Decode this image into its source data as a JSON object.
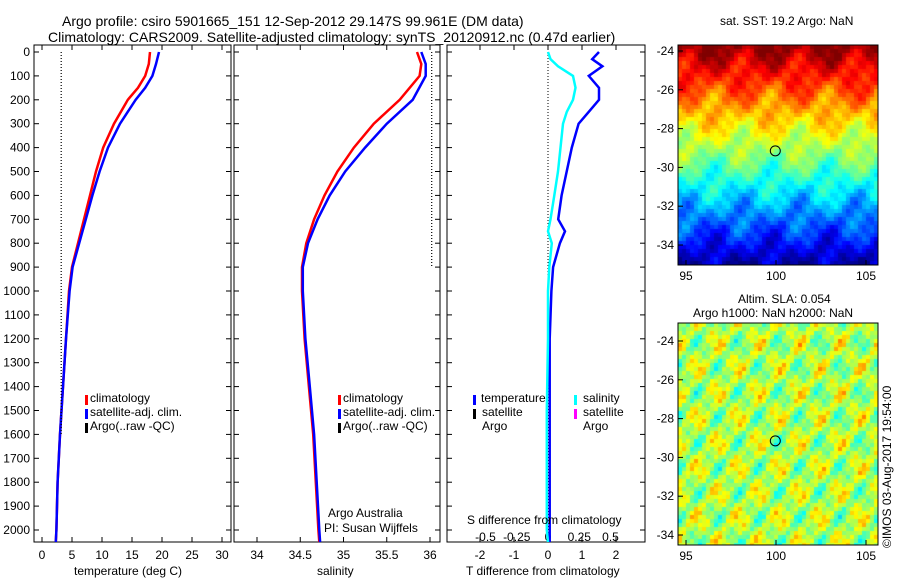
{
  "title": {
    "line1": "Argo profile: csiro 5901665_151 12-Sep-2012 29.147S 99.961E (DM data)",
    "line2": "Climatology: CARS2009. Satellite-adjusted climatology: synTS_20120912.nc (0.47d earlier)"
  },
  "colors": {
    "climatology": "#ff0000",
    "satellite": "#0000ff",
    "argo": "#000000",
    "sal_satellite": "#00ffff",
    "sal_argo": "#ff00ff"
  },
  "chart_data": [
    {
      "type": "line",
      "name": "temperature",
      "xlabel": "temperature (deg C)",
      "xlim": [
        -1,
        31
      ],
      "ylim": [
        2050,
        0
      ],
      "xticks": [
        0,
        5,
        10,
        15,
        20,
        25,
        30
      ],
      "yticks": [
        0,
        100,
        200,
        300,
        400,
        500,
        600,
        700,
        800,
        900,
        1000,
        1100,
        1200,
        1300,
        1400,
        1500,
        1600,
        1700,
        1800,
        1900,
        2000
      ],
      "depth": [
        0,
        50,
        100,
        150,
        200,
        300,
        400,
        500,
        600,
        700,
        800,
        900,
        1000,
        1200,
        1400,
        1600,
        1800,
        2000,
        2050
      ],
      "series": [
        {
          "name": "climatology",
          "values": [
            18,
            17.8,
            17.2,
            16,
            14.3,
            12,
            10.2,
            9,
            8,
            7,
            6,
            5,
            4.5,
            4,
            3.5,
            3,
            2.6,
            2.4,
            2.3
          ]
        },
        {
          "name": "satellite-adj. clim.",
          "values": [
            19.5,
            19,
            18.4,
            17.2,
            15.6,
            13,
            11,
            9.6,
            8.4,
            7.3,
            6.2,
            5.1,
            4.6,
            4,
            3.5,
            3,
            2.6,
            2.4,
            2.3
          ]
        },
        {
          "name": "Argo(..raw -QC)",
          "values": [
            3.2,
            3.2,
            3.2,
            3.2,
            3.2,
            3.2,
            3.2,
            3.2,
            3.2,
            3.2,
            3.2,
            3.2,
            3.2,
            3.2,
            3.2,
            3.2,
            null,
            null,
            null
          ]
        }
      ],
      "legend": [
        "climatology",
        "satellite-adj. clim.",
        "Argo(..raw -QC)"
      ]
    },
    {
      "type": "line",
      "name": "salinity",
      "xlabel": "salinity",
      "xlim": [
        33.7,
        36.1
      ],
      "ylim": [
        2050,
        0
      ],
      "xticks": [
        34,
        34.5,
        35,
        35.5,
        36
      ],
      "depth": [
        0,
        50,
        100,
        200,
        300,
        400,
        500,
        600,
        700,
        800,
        900,
        1000,
        1200,
        1400,
        1600,
        1800,
        2000,
        2050
      ],
      "series": [
        {
          "name": "climatology",
          "values": [
            35.85,
            35.9,
            35.88,
            35.65,
            35.35,
            35.12,
            34.93,
            34.78,
            34.66,
            34.57,
            34.52,
            34.52,
            34.55,
            34.6,
            34.65,
            34.68,
            34.71,
            34.72
          ]
        },
        {
          "name": "satellite-adj. clim.",
          "values": [
            35.9,
            35.95,
            35.95,
            35.8,
            35.5,
            35.25,
            35.02,
            34.84,
            34.7,
            34.59,
            34.53,
            34.53,
            34.56,
            34.61,
            34.66,
            34.69,
            34.72,
            34.73
          ]
        },
        {
          "name": "Argo(..raw -QC)",
          "values": [
            36.02,
            36.02,
            36.02,
            36.02,
            36.02,
            36.02,
            36.02,
            36.02,
            36.02,
            36.02,
            36.02,
            null,
            null,
            null,
            null,
            null,
            null,
            null
          ]
        }
      ],
      "legend": [
        "climatology",
        "satellite-adj. clim.",
        "Argo(..raw -QC)"
      ],
      "annotation": [
        "Argo Australia",
        "PI: Susan Wijffels"
      ]
    },
    {
      "type": "line",
      "name": "difference",
      "xlabel": "T difference from climatology",
      "x2label": "S difference from climatology",
      "xlim": [
        -3,
        3
      ],
      "xticks": [
        -2,
        -1,
        0,
        1,
        2
      ],
      "x2lim": [
        -0.75,
        0.75
      ],
      "x2ticks": [
        "-0.5",
        "-0.25",
        "0",
        "0.25",
        "0.5"
      ],
      "ylim": [
        2050,
        0
      ],
      "depth": [
        0,
        30,
        60,
        100,
        150,
        200,
        250,
        300,
        400,
        500,
        600,
        700,
        750,
        800,
        900,
        1000,
        1200,
        1500,
        2000,
        2050
      ],
      "series": [
        {
          "name": "temperature satellite",
          "values": [
            1.5,
            1.3,
            1.6,
            1.2,
            1.5,
            1.5,
            1.2,
            0.9,
            0.7,
            0.55,
            0.4,
            0.3,
            0.5,
            0.35,
            0.15,
            0.1,
            0.05,
            0.05,
            0.05,
            0.05
          ]
        },
        {
          "name": "salinity satellite",
          "values": [
            0,
            0.02,
            0.08,
            0.2,
            0.22,
            0.2,
            0.15,
            0.12,
            0.1,
            0.08,
            0.05,
            0.02,
            0,
            0.03,
            0.01,
            0,
            0,
            -0.01,
            -0.01,
            0
          ]
        }
      ],
      "legend": {
        "temperature": "temperature",
        "salinity": "salinity",
        "items": [
          "satellite",
          "Argo"
        ]
      }
    },
    {
      "type": "heatmap",
      "name": "sst_map",
      "title": "sat. SST: 19.2 Argo: NaN",
      "xticks": [
        95,
        100,
        105
      ],
      "yticks": [
        -24,
        -26,
        -28,
        -30,
        -32,
        -34
      ],
      "marker": [
        99.961,
        -29.147
      ]
    },
    {
      "type": "heatmap",
      "name": "sla_map",
      "title": [
        "Altim. SLA: 0.054",
        "Argo h1000: NaN h2000: NaN"
      ],
      "xticks": [
        95,
        100,
        105
      ],
      "yticks": [
        -24,
        -26,
        -28,
        -30,
        -32,
        -34
      ],
      "marker": [
        99.961,
        -29.147
      ]
    }
  ],
  "credit": "©IMOS 03-Aug-2017 19:54:00"
}
